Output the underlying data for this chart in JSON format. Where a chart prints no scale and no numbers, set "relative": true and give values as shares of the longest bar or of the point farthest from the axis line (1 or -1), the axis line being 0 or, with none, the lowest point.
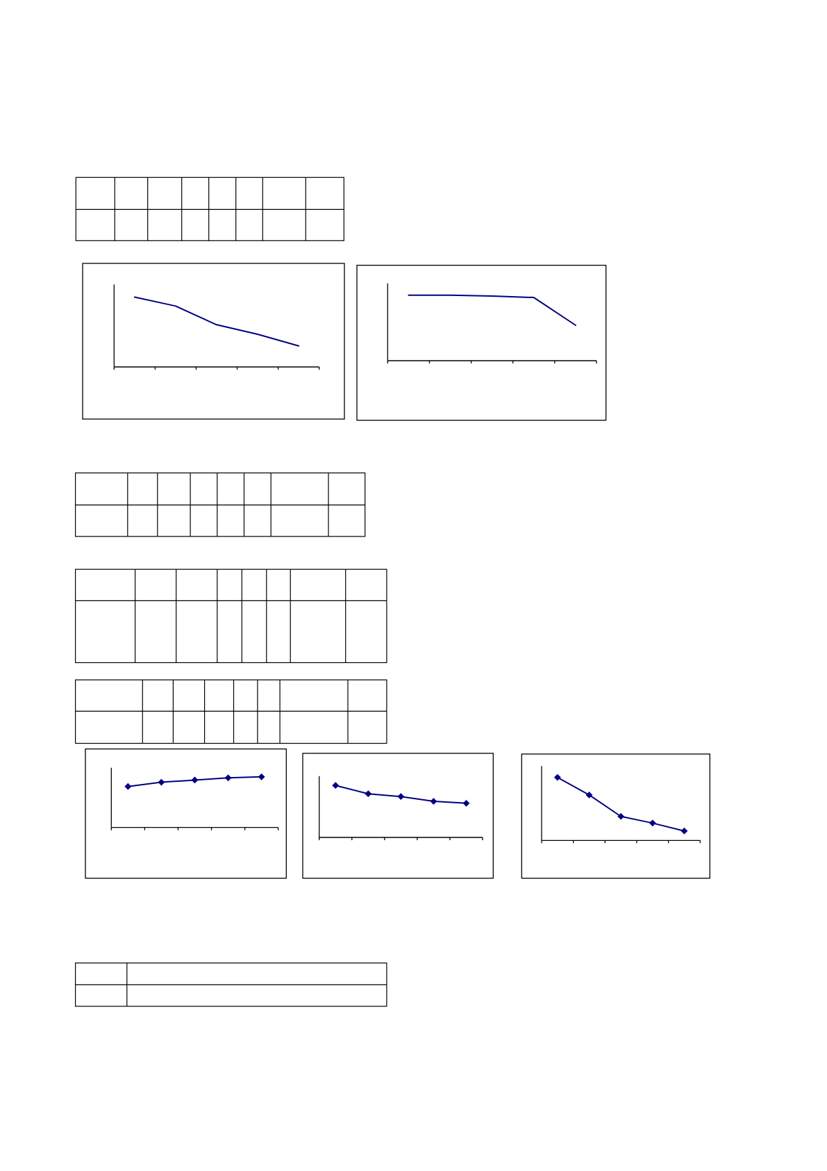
{
  "chart_data": [
    {
      "type": "line",
      "relative": true,
      "categories": [
        null,
        null,
        null,
        null,
        null
      ],
      "series": [
        {
          "color": "#000080",
          "values": [
            1,
            0.871,
            0.603,
            0.467,
            0.301
          ]
        }
      ]
    },
    {
      "type": "line",
      "relative": true,
      "categories": [
        null,
        null,
        null,
        null,
        null
      ],
      "series": [
        {
          "color": "#000080",
          "values": [
            1,
            1,
            0.986,
            0.964,
            0.541
          ]
        }
      ]
    },
    {
      "type": "line",
      "relative": true,
      "marker": "diamond",
      "categories": [
        null,
        null,
        null,
        null,
        null
      ],
      "series": [
        {
          "color": "#000080",
          "values": [
            0.81,
            0.893,
            0.937,
            0.98,
            1
          ]
        }
      ]
    },
    {
      "type": "line",
      "relative": true,
      "marker": "diamond",
      "categories": [
        null,
        null,
        null,
        null,
        null
      ],
      "series": [
        {
          "color": "#000080",
          "values": [
            1,
            0.839,
            0.786,
            0.694,
            0.657
          ]
        }
      ]
    },
    {
      "type": "line",
      "relative": true,
      "marker": "diamond",
      "categories": [
        null,
        null,
        null,
        null,
        null
      ],
      "series": [
        {
          "color": "#000080",
          "values": [
            1,
            0.721,
            0.381,
            0.275,
            0.15
          ]
        }
      ]
    }
  ]
}
